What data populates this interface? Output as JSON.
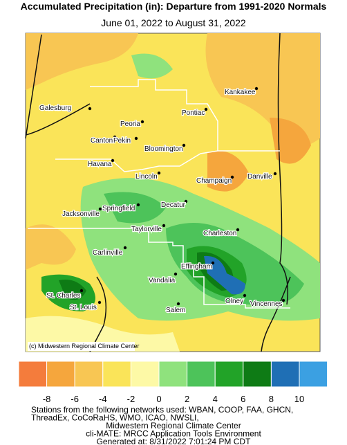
{
  "header": {
    "title": "Accumulated Precipitation (in): Departure from 1991-2020 Normals",
    "subtitle": "June 01, 2022 to August 31, 2022"
  },
  "map": {
    "copyright": "(c) Midwestern Regional Climate Center",
    "cities": [
      "Galesburg",
      "Kankakee",
      "Peoria",
      "Pontiac",
      "Canton",
      "Pekin",
      "Bloomington",
      "Havana",
      "Lincoln",
      "Champaign",
      "Danville",
      "Jacksonville",
      "Springfield",
      "Decatur",
      "Taylorville",
      "Charleston",
      "Carlinville",
      "Effingham",
      "Vandalia",
      "St. Charles",
      "Olney",
      "Vincennes",
      "St. Louis",
      "Salem"
    ]
  },
  "legend": {
    "colors": [
      "#f47c3c",
      "#f5a63d",
      "#f8c653",
      "#fae459",
      "#fdf9a6",
      "#8fe27d",
      "#4dc35a",
      "#22a328",
      "#0e7b15",
      "#1f6fb5",
      "#3ba0e2"
    ],
    "ticks": [
      -8,
      -6,
      -4,
      -2,
      0,
      2,
      4,
      6,
      8,
      10
    ]
  },
  "footer": {
    "lines": [
      "Stations from the following networks used: WBAN, COOP, FAA, GHCN,",
      "ThreadEx, CoCoRaHS, WMO, ICAO, NWSLI,",
      "Midwestern Regional Climate Center",
      "cli-MATE: MRCC Application Tools Environment",
      "Generated at: 8/31/2022 7:01:24 PM CDT"
    ]
  }
}
